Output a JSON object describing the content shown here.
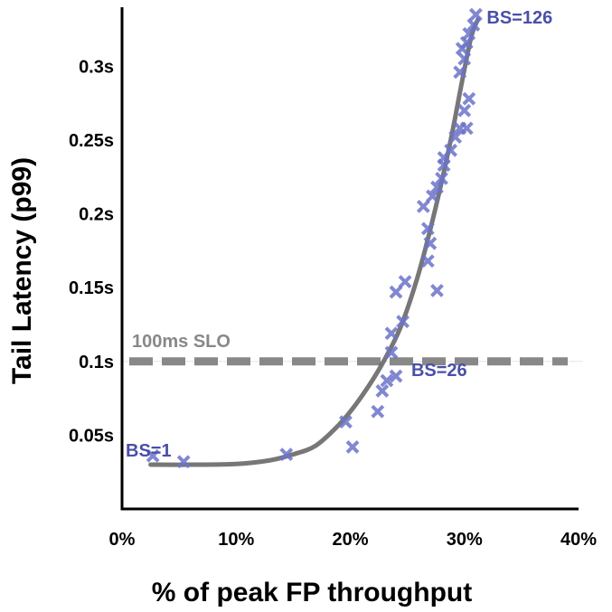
{
  "chart_data": {
    "type": "scatter",
    "title": "",
    "xlabel": "% of peak FP throughput",
    "ylabel": "Tail Latency (p99)",
    "xlim": [
      0,
      40
    ],
    "ylim": [
      0,
      0.34
    ],
    "x_ticks": [
      {
        "value": 0,
        "label": "0%"
      },
      {
        "value": 10,
        "label": "10%"
      },
      {
        "value": 20,
        "label": "20%"
      },
      {
        "value": 30,
        "label": "30%"
      },
      {
        "value": 40,
        "label": "40%"
      }
    ],
    "y_ticks": [
      {
        "value": 0.05,
        "label": "0.05s"
      },
      {
        "value": 0.1,
        "label": "0.1s"
      },
      {
        "value": 0.15,
        "label": "0.15s"
      },
      {
        "value": 0.2,
        "label": "0.2s"
      },
      {
        "value": 0.25,
        "label": "0.25s"
      },
      {
        "value": 0.3,
        "label": "0.3s"
      }
    ],
    "grid": false,
    "colors": {
      "points": "#6b73c9",
      "curve": "#666666",
      "slo": "#888888",
      "labels": "#4a4fa8"
    },
    "points": [
      [
        2.7,
        0.036
      ],
      [
        5.4,
        0.032
      ],
      [
        14.4,
        0.037
      ],
      [
        19.6,
        0.059
      ],
      [
        20.2,
        0.042
      ],
      [
        22.4,
        0.066
      ],
      [
        22.8,
        0.08
      ],
      [
        23.2,
        0.087
      ],
      [
        23.6,
        0.119
      ],
      [
        23.6,
        0.106
      ],
      [
        24.0,
        0.147
      ],
      [
        24.0,
        0.09
      ],
      [
        24.6,
        0.127
      ],
      [
        24.8,
        0.154
      ],
      [
        26.4,
        0.205
      ],
      [
        26.8,
        0.19
      ],
      [
        26.8,
        0.168
      ],
      [
        27.0,
        0.18
      ],
      [
        27.2,
        0.212
      ],
      [
        27.6,
        0.148
      ],
      [
        27.6,
        0.218
      ],
      [
        28.0,
        0.224
      ],
      [
        28.2,
        0.233
      ],
      [
        28.2,
        0.238
      ],
      [
        28.8,
        0.243
      ],
      [
        29.2,
        0.252
      ],
      [
        29.6,
        0.258
      ],
      [
        29.6,
        0.296
      ],
      [
        29.8,
        0.312
      ],
      [
        30.0,
        0.27
      ],
      [
        30.0,
        0.305
      ],
      [
        30.2,
        0.316
      ],
      [
        30.2,
        0.258
      ],
      [
        30.4,
        0.278
      ],
      [
        30.4,
        0.322
      ],
      [
        30.8,
        0.328
      ],
      [
        31.0,
        0.335
      ]
    ],
    "fit_curve": [
      [
        2.5,
        0.03
      ],
      [
        6,
        0.03
      ],
      [
        10,
        0.0305
      ],
      [
        13,
        0.033
      ],
      [
        15,
        0.037
      ],
      [
        17,
        0.043
      ],
      [
        19,
        0.057
      ],
      [
        20.5,
        0.071
      ],
      [
        22,
        0.088
      ],
      [
        23.2,
        0.104
      ],
      [
        24.5,
        0.125
      ],
      [
        26,
        0.16
      ],
      [
        27.5,
        0.205
      ],
      [
        28.8,
        0.25
      ],
      [
        29.8,
        0.29
      ],
      [
        30.6,
        0.32
      ],
      [
        31.2,
        0.332
      ]
    ],
    "slo_line": {
      "y": 0.1,
      "label": "100ms SLO"
    },
    "annotations": [
      {
        "text": "BS=1",
        "x": 2.7,
        "y": 0.036
      },
      {
        "text": "BS=26",
        "x": 23.6,
        "y": 0.106
      },
      {
        "text": "BS=126",
        "x": 31.0,
        "y": 0.335
      }
    ]
  }
}
